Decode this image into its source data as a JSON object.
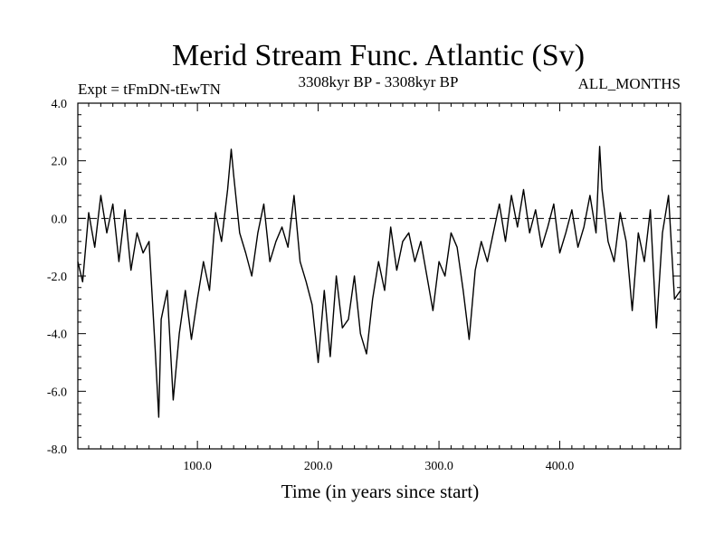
{
  "chart_data": {
    "type": "line",
    "title": "Merid Stream Func. Atlantic (Sv)",
    "subtitle_left": "Expt = tFmDN-tEwTN",
    "subtitle_center": "3308kyr BP - 3308kyr BP",
    "subtitle_right": "ALL_MONTHS",
    "xlabel": "Time (in years since start)",
    "ylabel": "",
    "xlim": [
      1,
      500
    ],
    "ylim": [
      -8,
      4
    ],
    "xticks": [
      100,
      200,
      300,
      400
    ],
    "xtick_labels": [
      "100.0",
      "200.0",
      "300.0",
      "400.0"
    ],
    "yticks": [
      4,
      2,
      0,
      -2,
      -4,
      -6,
      -8
    ],
    "ytick_labels": [
      "4.0",
      "2.0",
      "0.0",
      "-2.0",
      "-4.0",
      "-6.0",
      "-8.0"
    ],
    "reference_line": 0,
    "grid": false,
    "series": [
      {
        "name": "Merid Stream Func. Atlantic",
        "x": [
          1,
          5,
          10,
          15,
          20,
          25,
          30,
          35,
          40,
          45,
          50,
          55,
          60,
          65,
          68,
          70,
          75,
          80,
          85,
          90,
          95,
          100,
          105,
          110,
          115,
          120,
          125,
          128,
          130,
          135,
          140,
          145,
          150,
          155,
          160,
          165,
          170,
          175,
          180,
          185,
          190,
          195,
          200,
          205,
          210,
          215,
          220,
          225,
          230,
          235,
          240,
          245,
          250,
          255,
          260,
          265,
          270,
          275,
          280,
          285,
          290,
          295,
          300,
          305,
          310,
          315,
          320,
          325,
          330,
          335,
          340,
          345,
          350,
          355,
          360,
          365,
          370,
          375,
          380,
          385,
          390,
          395,
          400,
          405,
          410,
          415,
          420,
          425,
          430,
          433,
          435,
          440,
          445,
          450,
          455,
          460,
          465,
          470,
          475,
          480,
          485,
          490,
          495,
          500
        ],
        "values": [
          -1.5,
          -2.2,
          0.2,
          -1.0,
          0.8,
          -0.5,
          0.5,
          -1.5,
          0.3,
          -1.8,
          -0.5,
          -1.2,
          -0.8,
          -4.5,
          -6.9,
          -3.5,
          -2.5,
          -6.3,
          -4.0,
          -2.5,
          -4.2,
          -2.8,
          -1.5,
          -2.5,
          0.2,
          -0.8,
          1.0,
          2.4,
          1.5,
          -0.5,
          -1.2,
          -2.0,
          -0.5,
          0.5,
          -1.5,
          -0.8,
          -0.3,
          -1.0,
          0.8,
          -1.5,
          -2.2,
          -3.0,
          -5.0,
          -2.5,
          -4.8,
          -2.0,
          -3.8,
          -3.5,
          -2.0,
          -4.0,
          -4.7,
          -2.8,
          -1.5,
          -2.5,
          -0.3,
          -1.8,
          -0.8,
          -0.5,
          -1.5,
          -0.8,
          -2.0,
          -3.2,
          -1.5,
          -2.0,
          -0.5,
          -1.0,
          -2.5,
          -4.2,
          -1.8,
          -0.8,
          -1.5,
          -0.5,
          0.5,
          -0.8,
          0.8,
          -0.3,
          1.0,
          -0.5,
          0.3,
          -1.0,
          -0.3,
          0.5,
          -1.2,
          -0.5,
          0.3,
          -1.0,
          -0.3,
          0.8,
          -0.5,
          2.5,
          1.0,
          -0.8,
          -1.5,
          0.2,
          -0.8,
          -3.2,
          -0.5,
          -1.5,
          0.3,
          -3.8,
          -0.5,
          0.8,
          -2.8,
          -2.5
        ]
      }
    ]
  }
}
